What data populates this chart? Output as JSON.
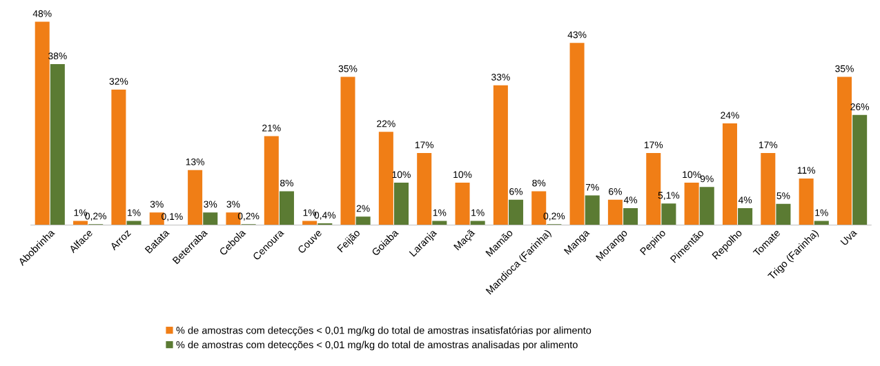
{
  "chart_data": {
    "type": "bar",
    "categories": [
      "Abobrinha",
      "Alface",
      "Arroz",
      "Batata",
      "Beterraba",
      "Cebola",
      "Cenoura",
      "Couve",
      "Feijão",
      "Goiaba",
      "Laranja",
      "Maçã",
      "Mamão",
      "Mandioca (Farinha)",
      "Manga",
      "Morango",
      "Pepino",
      "Pimentão",
      "Repolho",
      "Tomate",
      "Trigo (Farinha)",
      "Uva"
    ],
    "series": [
      {
        "name": "% de amostras com detecções < 0,01 mg/kg do total de amostras insatisfatórias por alimento",
        "color": "#f07e16",
        "values": [
          48,
          1,
          32,
          3,
          13,
          3,
          21,
          1,
          35,
          22,
          17,
          10,
          33,
          8,
          43,
          6,
          17,
          10,
          24,
          17,
          11,
          35
        ],
        "value_labels": [
          "48%",
          "1%",
          "32%",
          "3%",
          "13%",
          "3%",
          "21%",
          "1%",
          "35%",
          "22%",
          "17%",
          "10%",
          "33%",
          "8%",
          "43%",
          "6%",
          "17%",
          "10%",
          "24%",
          "17%",
          "11%",
          "35%"
        ]
      },
      {
        "name": "% de amostras com detecções < 0,01 mg/kg do total de amostras analisadas por alimento",
        "color": "#5b7b33",
        "values": [
          38,
          0.2,
          1,
          0.1,
          3,
          0.2,
          8,
          0.4,
          2,
          10,
          1,
          1,
          6,
          0.2,
          7,
          4,
          5.1,
          9,
          4,
          5,
          1,
          26
        ],
        "value_labels": [
          "38%",
          "0,2%",
          "1%",
          "0,1%",
          "3%",
          "0,2%",
          "8%",
          "0,4%",
          "2%",
          "10%",
          "1%",
          "1%",
          "6%",
          "0,2%",
          "7%",
          "4%",
          "5,1%",
          "9%",
          "4%",
          "5%",
          "1%",
          "26%"
        ]
      }
    ],
    "legend": "bottom",
    "grid": false,
    "tick_labels": "x"
  }
}
